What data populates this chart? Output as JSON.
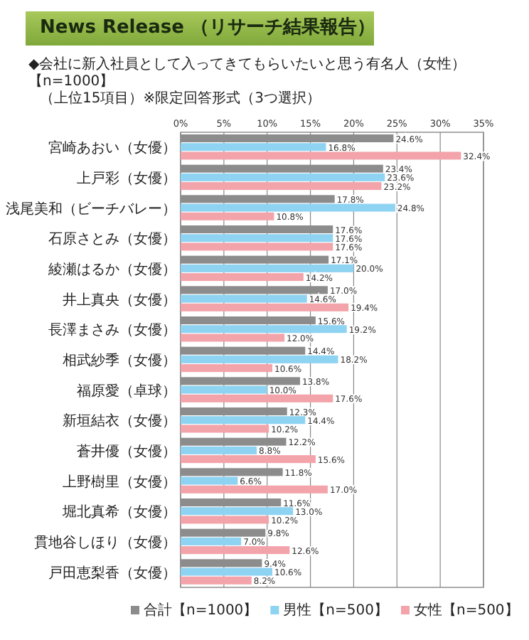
{
  "chart_data": {
    "type": "bar",
    "orientation": "horizontal",
    "title": "◆会社に新入社員として入ってきてもらいたいと思う有名人（女性）【n=1000】",
    "subtitle": "（上位15項目）※限定回答形式（3つ選択）",
    "annotations": [
      "News Release （リサーチ結果報告）"
    ],
    "categories": [
      "宮崎あおい（女優）",
      "上戸彩（女優）",
      "浅尾美和（ビーチバレー）",
      "石原さとみ（女優）",
      "綾瀬はるか（女優）",
      "井上真央（女優）",
      "長澤まさみ（女優）",
      "相武紗季（女優）",
      "福原愛（卓球）",
      "新垣結衣（女優）",
      "蒼井優（女優）",
      "上野樹里（女優）",
      "堀北真希（女優）",
      "貫地谷しほり（女優）",
      "戸田恵梨香（女優）"
    ],
    "series": [
      {
        "name": "合計【n=1000】",
        "color": "#8c8c8c",
        "values": [
          24.6,
          23.4,
          17.8,
          17.6,
          17.1,
          17.0,
          15.6,
          14.4,
          13.8,
          12.3,
          12.2,
          11.8,
          11.6,
          9.8,
          9.4
        ],
        "value_labels": [
          "24.6%",
          "23.4%",
          "17.8%",
          "17.6%",
          "17.1%",
          "17.0%",
          "15.6%",
          "14.4%",
          "13.8%",
          "12.3%",
          "12.2%",
          "11.8%",
          "11.6%",
          "9.8%",
          "9.4%"
        ]
      },
      {
        "name": "男性【n=500】",
        "color": "#8fd3f2",
        "values": [
          16.8,
          23.6,
          24.8,
          17.6,
          20.0,
          14.6,
          19.2,
          18.2,
          10.0,
          14.4,
          8.8,
          6.6,
          13.0,
          7.0,
          10.6
        ],
        "value_labels": [
          "16.8%",
          "23.6%",
          "24.8%",
          "17.6%",
          "20.0%",
          "14.6%",
          "19.2%",
          "18.2%",
          "10.0%",
          "14.4%",
          "8.8%",
          "6.6%",
          "13.0%",
          "7.0%",
          "10.6%"
        ]
      },
      {
        "name": "女性【n=500】",
        "color": "#f3a3aa",
        "values": [
          32.4,
          23.2,
          10.8,
          17.6,
          14.2,
          19.4,
          12.0,
          10.6,
          17.6,
          10.2,
          15.6,
          17.0,
          10.2,
          12.6,
          8.2
        ],
        "value_labels": [
          "32.4%",
          "23.2%",
          "10.8%",
          "17.6%",
          "14.2%",
          "19.4%",
          "12.0%",
          "10.6%",
          "17.6%",
          "10.2%",
          "15.6%",
          "17.0%",
          "10.2%",
          "12.6%",
          "8.2%"
        ]
      }
    ],
    "xlim": [
      0,
      35
    ],
    "xticks": [
      {
        "value": 0,
        "label": "0%"
      },
      {
        "value": 5,
        "label": "5%"
      },
      {
        "value": 10,
        "label": "10%"
      },
      {
        "value": 15,
        "label": "15%"
      },
      {
        "value": 20,
        "label": "20%"
      },
      {
        "value": 25,
        "label": "25%"
      },
      {
        "value": 30,
        "label": "30%"
      },
      {
        "value": 35,
        "label": "35%"
      }
    ],
    "grid": "x",
    "legend": "bottom"
  }
}
